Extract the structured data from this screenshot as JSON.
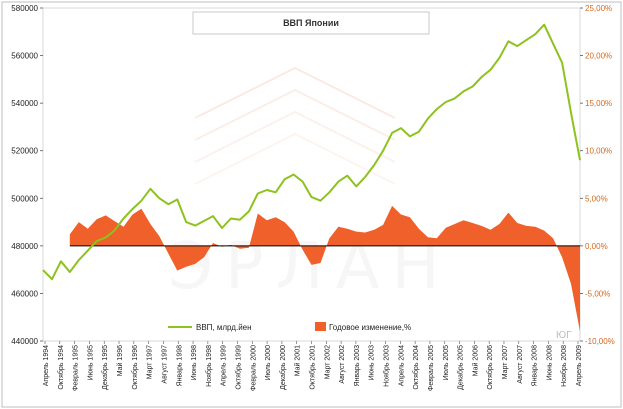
{
  "chart_data": {
    "type": "line",
    "title": "ВВП Японии",
    "watermark": "ЭРЛАН",
    "corner_mark": "ЮГ",
    "y_left": {
      "ylim": [
        440000,
        580000
      ],
      "ticks": [
        "440000",
        "460000",
        "480000",
        "500000",
        "520000",
        "540000",
        "560000",
        "580000"
      ]
    },
    "y_right": {
      "ylim": [
        -10,
        25
      ],
      "ticks": [
        "-10,00%",
        "-5,00%",
        "0,00%",
        "5,00%",
        "10,00%",
        "15,00%",
        "20,00%",
        "25,00%"
      ]
    },
    "x_labels": [
      "Апрель 1994",
      "Октябрь 1994",
      "Февраль 1995",
      "Июнь 1995",
      "Декабрь 1995",
      "Май 1996",
      "Октябрь 1996",
      "Март 1997",
      "Август 1997",
      "Январь 1998",
      "Июнь 1998",
      "Ноябрь 1998",
      "Апрель 1999",
      "Октябрь 1999",
      "Февраль 2000",
      "Июль 2000",
      "Декабрь 2000",
      "Май 2001",
      "Октябрь 2001",
      "Март 2002",
      "Август 2002",
      "Январь 2003",
      "Июнь 2003",
      "Ноябрь 2003",
      "Апрель 2004",
      "Октябрь 2004",
      "Февраль 2005",
      "Июль 2005",
      "Декабрь 2005",
      "Май 2006",
      "Октябрь 2006",
      "Март 2007",
      "Август 2007",
      "Январь 2008",
      "Июнь 2008",
      "Ноябрь 2008",
      "Апрель 2009"
    ],
    "series": [
      {
        "name": "ВВП, млрд.йен",
        "axis": "left",
        "color": "#8dc21f",
        "x": [
          1994.25,
          1994.5,
          1994.75,
          1995.0,
          1995.25,
          1995.5,
          1995.75,
          1996.0,
          1996.25,
          1996.5,
          1996.75,
          1997.0,
          1997.25,
          1997.5,
          1997.75,
          1998.0,
          1998.25,
          1998.5,
          1998.75,
          1999.0,
          1999.25,
          1999.5,
          1999.75,
          2000.0,
          2000.25,
          2000.5,
          2000.75,
          2001.0,
          2001.25,
          2001.5,
          2001.75,
          2002.0,
          2002.25,
          2002.5,
          2002.75,
          2003.0,
          2003.25,
          2003.5,
          2003.75,
          2004.0,
          2004.25,
          2004.5,
          2004.75,
          2005.0,
          2005.25,
          2005.5,
          2005.75,
          2006.0,
          2006.25,
          2006.5,
          2006.75,
          2007.0,
          2007.25,
          2007.5,
          2007.75,
          2008.0,
          2008.25,
          2008.5,
          2008.75,
          2009.0,
          2009.25
        ],
        "values": [
          469800,
          466000,
          473500,
          469000,
          474000,
          478000,
          482000,
          483500,
          486500,
          491500,
          495500,
          499000,
          504000,
          500000,
          497500,
          499500,
          490000,
          488500,
          490500,
          492500,
          487500,
          491500,
          491000,
          494500,
          502000,
          503500,
          502500,
          508000,
          510000,
          507000,
          500500,
          499000,
          502500,
          507000,
          509500,
          505000,
          509000,
          514000,
          520000,
          527500,
          529500,
          526000,
          528000,
          533500,
          537500,
          540500,
          542000,
          545000,
          547000,
          551000,
          554000,
          559000,
          566000,
          564000,
          566500,
          569000,
          573000,
          565000,
          557000,
          536000,
          516000
        ]
      },
      {
        "name": "Годовое изменение,%",
        "axis": "right",
        "type": "area",
        "color": "#f0602a",
        "x": [
          1995.0,
          1995.25,
          1995.5,
          1995.75,
          1996.0,
          1996.25,
          1996.5,
          1996.75,
          1997.0,
          1997.25,
          1997.5,
          1997.75,
          1998.0,
          1998.25,
          1998.5,
          1998.75,
          1999.0,
          1999.25,
          1999.5,
          1999.75,
          2000.0,
          2000.25,
          2000.5,
          2000.75,
          2001.0,
          2001.25,
          2001.5,
          2001.75,
          2002.0,
          2002.25,
          2002.5,
          2002.75,
          2003.0,
          2003.25,
          2003.5,
          2003.75,
          2004.0,
          2004.25,
          2004.5,
          2004.75,
          2005.0,
          2005.25,
          2005.5,
          2005.75,
          2006.0,
          2006.25,
          2006.5,
          2006.75,
          2007.0,
          2007.25,
          2007.5,
          2007.75,
          2008.0,
          2008.25,
          2008.5,
          2008.75,
          2009.0,
          2009.25
        ],
        "values": [
          1.2,
          2.5,
          1.8,
          2.8,
          3.2,
          2.6,
          2.0,
          3.3,
          3.9,
          2.3,
          1.0,
          -0.8,
          -2.6,
          -2.2,
          -1.9,
          -1.2,
          0.3,
          -0.1,
          0.1,
          -0.3,
          -0.2,
          3.4,
          2.7,
          3.0,
          2.5,
          1.5,
          -0.4,
          -2.0,
          -1.8,
          0.8,
          2.0,
          1.8,
          1.5,
          1.4,
          1.7,
          2.2,
          4.2,
          3.3,
          3.0,
          1.8,
          0.9,
          0.8,
          1.9,
          2.3,
          2.7,
          2.4,
          2.1,
          1.7,
          2.3,
          3.5,
          2.4,
          2.1,
          2.0,
          1.6,
          0.8,
          -1.2,
          -4.0,
          -9.0
        ]
      }
    ],
    "legend_position": "bottom",
    "grid": false
  }
}
